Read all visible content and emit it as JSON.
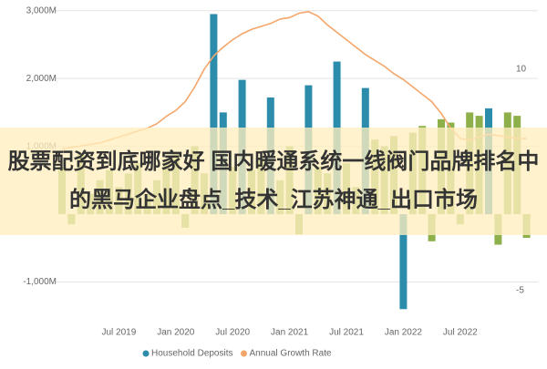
{
  "chart_data": {
    "type": "bar-line",
    "overlay_text": "股票配资到底哪家好 国内暖通系统一线阀门品牌排名中的黑马企业盘点_技术_江苏神通_出口市场",
    "categories": [
      null,
      null,
      null,
      null,
      null,
      null,
      "Jul 2019",
      null,
      null,
      null,
      null,
      null,
      "Jan 2020",
      null,
      null,
      null,
      null,
      null,
      "Jul 2020",
      null,
      null,
      null,
      null,
      null,
      "Jan 2021",
      null,
      null,
      null,
      null,
      null,
      "Jul 2021",
      null,
      null,
      null,
      null,
      null,
      "Jan 2022",
      null,
      null,
      null,
      null,
      null,
      "Jul 2022",
      null,
      null,
      null,
      null,
      null,
      null,
      null
    ],
    "series": [
      {
        "name": "Household Deposits",
        "type": "bar",
        "color": "#2b8cab",
        "colors": [
          "#8db04a",
          "#8db04a",
          "#8db04a",
          "#8db04a",
          "#8db04a",
          "#8db04a",
          "#8db04a",
          "#8db04a",
          "#8db04a",
          "#8db04a",
          "#8db04a",
          "#8db04a",
          "#8db04a",
          "#8db04a",
          "#8db04a",
          "#8db04a",
          "#2b8cab",
          "#2b8cab",
          "#8db04a",
          "#2b8cab",
          "#8db04a",
          "#8db04a",
          "#2b8cab",
          "#8db04a",
          "#8db04a",
          "#8db04a",
          "#2b8cab",
          "#8db04a",
          "#8db04a",
          "#2b8cab",
          "#8db04a",
          "#8db04a",
          "#2b8cab",
          "#8db04a",
          "#8db04a",
          "#8db04a",
          "#2b8cab",
          "#8db04a",
          "#8db04a",
          "#8db04a",
          "#8db04a",
          "#8db04a",
          "#8db04a",
          "#8db04a",
          "#8db04a",
          "#2b8cab",
          "#8db04a",
          "#8db04a",
          "#8db04a",
          "#8db04a"
        ],
        "values": [
          700,
          -150,
          900,
          300,
          500,
          650,
          400,
          600,
          750,
          300,
          500,
          800,
          900,
          -200,
          1000,
          600,
          2950,
          1500,
          700,
          1980,
          650,
          800,
          1720,
          500,
          1000,
          -300,
          1900,
          700,
          600,
          2250,
          750,
          400,
          1860,
          1100,
          1000,
          1150,
          -1400,
          1200,
          1300,
          -400,
          1400,
          1350,
          -150,
          1500,
          1450,
          1560,
          -450,
          1500,
          1450,
          -350
        ]
      },
      {
        "name": "Annual Growth Rate",
        "type": "line",
        "axis": "y2",
        "color": "#f5a66a",
        "values": [
          4.6,
          4.7,
          4.8,
          4.9,
          5.0,
          5.2,
          5.4,
          5.6,
          5.8,
          6.0,
          6.3,
          6.8,
          7.2,
          7.8,
          8.8,
          10.0,
          10.9,
          11.5,
          12.0,
          12.4,
          12.7,
          12.9,
          13.1,
          13.4,
          13.5,
          13.8,
          13.9,
          13.6,
          13.0,
          12.5,
          12.0,
          11.5,
          11.0,
          10.6,
          10.2,
          9.7,
          9.3,
          8.8,
          8.3,
          7.8,
          7.0,
          6.0,
          5.3,
          5.2,
          5.4,
          5.6,
          5.5,
          5.4,
          5.3,
          5.3
        ]
      }
    ],
    "ylim": [
      -1450,
      3050
    ],
    "yticks": [
      {
        "value": -1000,
        "label": "-1,000M"
      },
      {
        "value": 1000,
        "label": "1,000M"
      },
      {
        "value": 2000,
        "label": "2,000M"
      },
      {
        "value": 3000,
        "label": "3,000M"
      }
    ],
    "y2lim": [
      -6.5,
      14.2
    ],
    "y2ticks": [
      -5,
      5,
      10
    ],
    "grid": true,
    "legend": "bottom"
  }
}
